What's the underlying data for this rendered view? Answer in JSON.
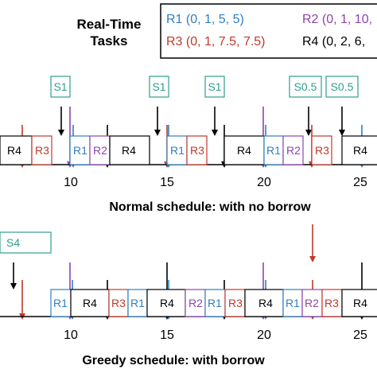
{
  "legend": {
    "title_line1": "Real-Time",
    "title_line2": "Tasks",
    "r1": "R1 (0, 1, 5, 5)",
    "r2": "R2 (0, 1, 10,",
    "r3": "R3 (0, 1, 7.5, 7.5)",
    "r4": "R4 (0, 2, 6,"
  },
  "colors": {
    "r1": "#2f7fc1",
    "r2": "#8e44ad",
    "r3": "#c0392b",
    "r4": "#000000",
    "server": "#2e9e8a"
  },
  "normal": {
    "servers": [
      "S1",
      "S1",
      "S1",
      "S0.5",
      "S0.5"
    ],
    "blocks": [
      {
        "label": "R4",
        "color": "r4"
      },
      {
        "label": "R3",
        "color": "r3"
      },
      {
        "label": "R1",
        "color": "r1"
      },
      {
        "label": "R2",
        "color": "r2"
      },
      {
        "label": "R4",
        "color": "r4"
      },
      {
        "label": "R1",
        "color": "r1"
      },
      {
        "label": "R3",
        "color": "r3"
      },
      {
        "label": "R4",
        "color": "r4"
      },
      {
        "label": "R1",
        "color": "r1"
      },
      {
        "label": "R2",
        "color": "r2"
      },
      {
        "label": "R3",
        "color": "r3"
      },
      {
        "label": "R4",
        "color": "r4"
      }
    ],
    "ticks": [
      "10",
      "15",
      "20",
      "25"
    ],
    "caption": "Normal schedule: with no borrow"
  },
  "greedy": {
    "server": "S4",
    "blocks": [
      {
        "label": "R1",
        "color": "r1"
      },
      {
        "label": "R4",
        "color": "r4"
      },
      {
        "label": "R3",
        "color": "r3"
      },
      {
        "label": "R1",
        "color": "r1"
      },
      {
        "label": "R4",
        "color": "r4"
      },
      {
        "label": "R2",
        "color": "r2"
      },
      {
        "label": "R1",
        "color": "r1"
      },
      {
        "label": "R3",
        "color": "r3"
      },
      {
        "label": "R4",
        "color": "r4"
      },
      {
        "label": "R1",
        "color": "r1"
      },
      {
        "label": "R2",
        "color": "r2"
      },
      {
        "label": "R3",
        "color": "r3"
      },
      {
        "label": "R4",
        "color": "r4"
      }
    ],
    "ticks": [
      "10",
      "15",
      "20",
      "25"
    ],
    "caption": "Greedy schedule: with borrow"
  }
}
